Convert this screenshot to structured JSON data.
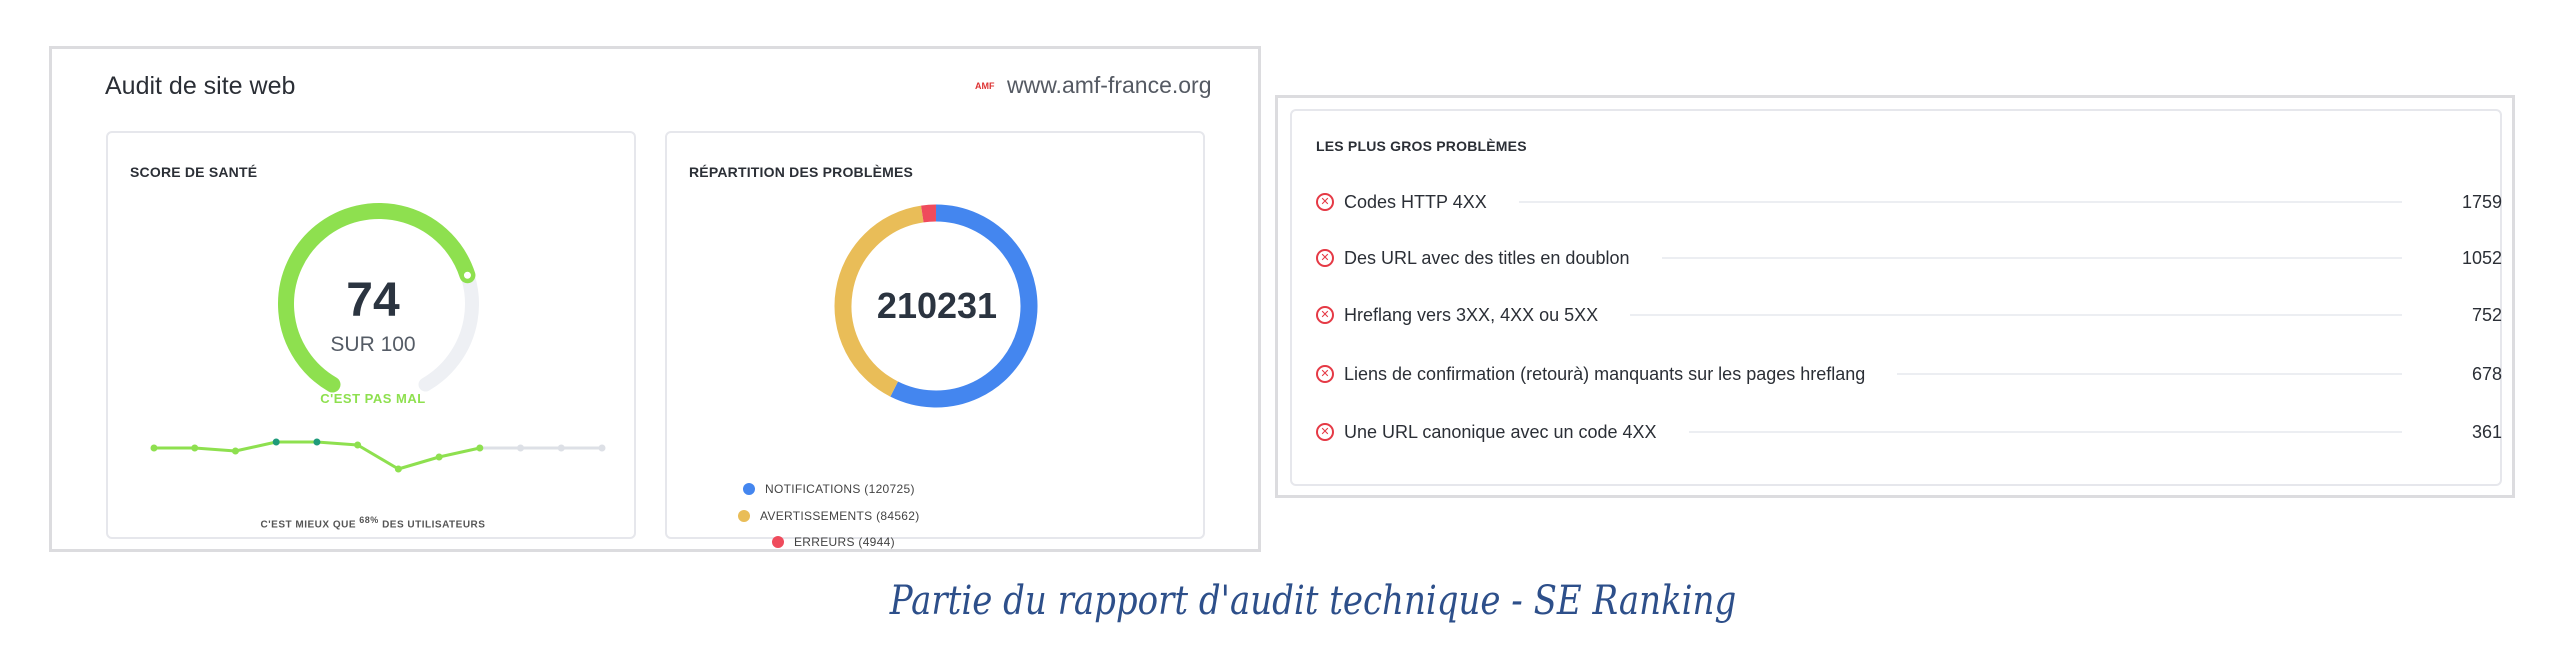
{
  "left_panel": {
    "title": "Audit de site web",
    "logo_text": "AMF",
    "domain": "www.amf-france.org"
  },
  "health_score": {
    "heading": "SCORE DE SANTÉ",
    "score": "74",
    "score_value": 74,
    "out_of": "SUR 100",
    "verdict": "C'EST PAS MAL",
    "comparison_prefix": "C'EST MIEUX QUE ",
    "comparison_percent": "68%",
    "comparison_suffix": " DES UTILISATEURS",
    "colors": {
      "good": "#8ee04f",
      "track": "#eef0f4",
      "highlight": "#1f9b7a",
      "future": "#dde0e6"
    }
  },
  "chart_data": {
    "type": "line",
    "series": [
      {
        "values": [
          72,
          72,
          71,
          74,
          74,
          73,
          65,
          69,
          72,
          null,
          null,
          null
        ]
      }
    ],
    "highlighted_points": [
      3,
      4
    ],
    "grid": false
  },
  "problems_breakdown": {
    "heading": "RÉPARTITION DES PROBLÈMES",
    "total": "210231",
    "slices": [
      {
        "label": "NOTIFICATIONS (120725)",
        "value": 120725,
        "color": "#4486ef"
      },
      {
        "label": "AVERTISSEMENTS (84562)",
        "value": 84562,
        "color": "#e9bd58"
      },
      {
        "label": "ERREURS (4944)",
        "value": 4944,
        "color": "#ef4b5c"
      }
    ]
  },
  "top_issues": {
    "heading": "LES PLUS GROS PROBLÈMES",
    "icon": "error-circle-x-icon",
    "items": [
      {
        "label": "Codes HTTP 4XX",
        "count": "1759"
      },
      {
        "label": "Des URL avec des titles en doublon",
        "count": "1052"
      },
      {
        "label": "Hreflang vers 3XX, 4XX ou 5XX",
        "count": "752"
      },
      {
        "label": "Liens de confirmation (retourà) manquants sur les pages hreflang",
        "count": "678"
      },
      {
        "label": "Une URL canonique avec un code 4XX",
        "count": "361"
      }
    ]
  },
  "caption": "Partie du rapport d'audit technique - SE Ranking"
}
